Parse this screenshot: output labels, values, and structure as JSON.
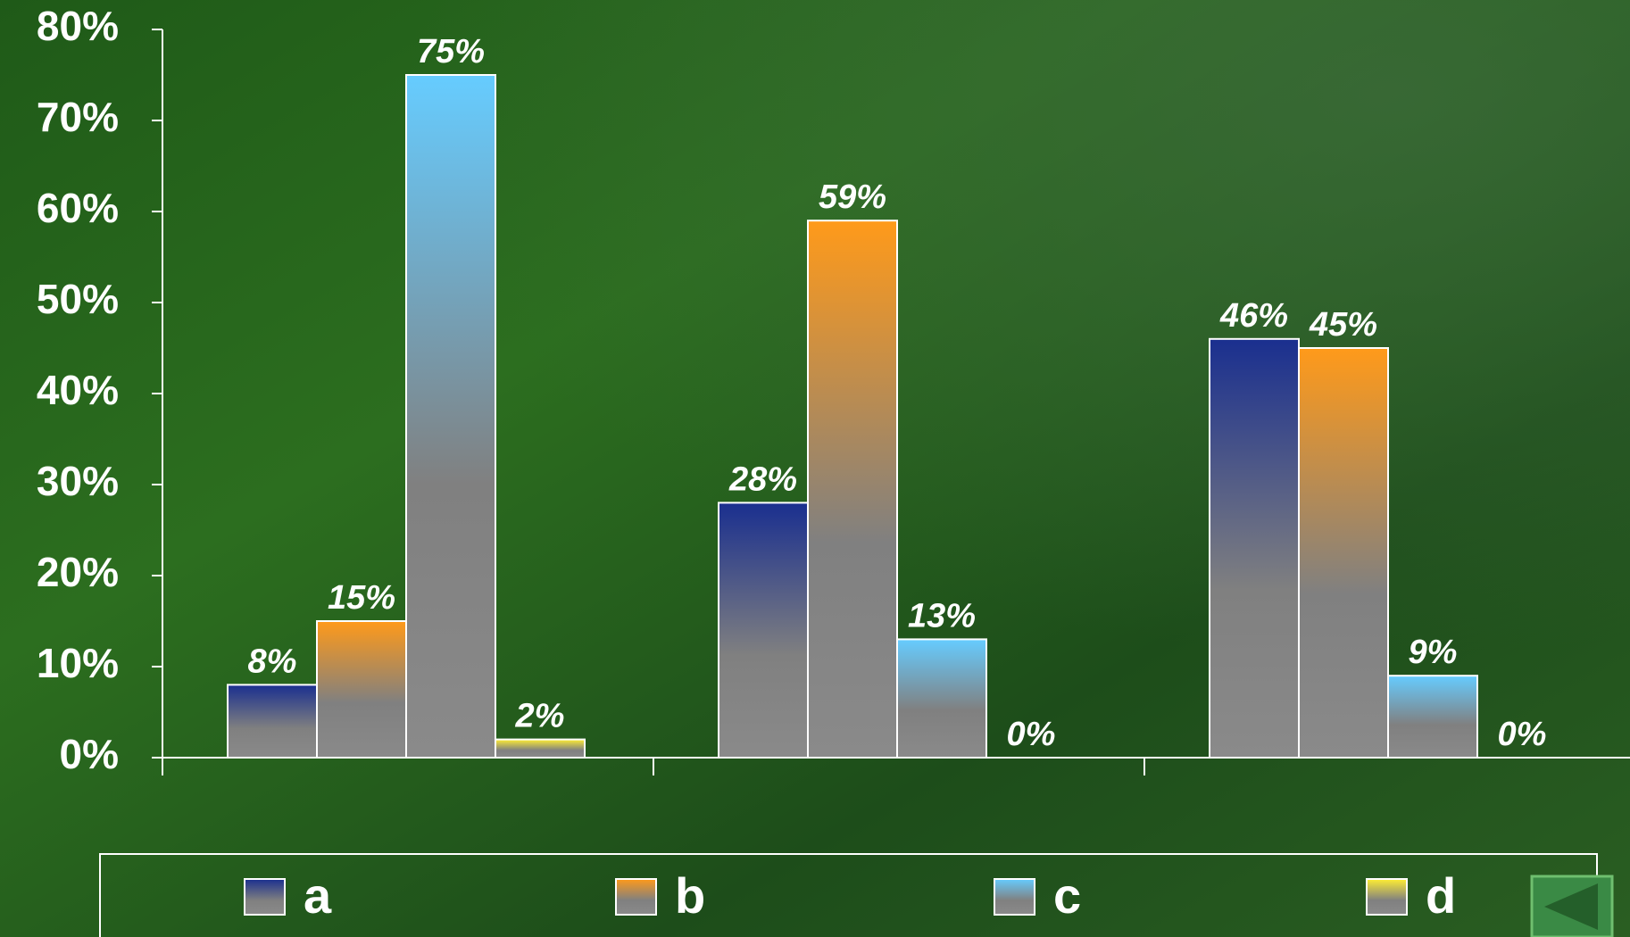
{
  "chart_data": {
    "type": "bar",
    "categories": [
      null,
      null,
      null
    ],
    "series": [
      {
        "name": "a",
        "color": "#1a2f8f",
        "values": [
          8,
          28,
          46
        ],
        "value_labels": [
          "8%",
          "28%",
          "46%"
        ]
      },
      {
        "name": "b",
        "color": "#ff9a1a",
        "values": [
          15,
          59,
          45
        ],
        "value_labels": [
          "15%",
          "59%",
          "45%"
        ]
      },
      {
        "name": "c",
        "color": "#66ccff",
        "values": [
          75,
          13,
          9
        ],
        "value_labels": [
          "75%",
          "13%",
          "9%"
        ]
      },
      {
        "name": "d",
        "color": "#ffee33",
        "values": [
          2,
          0,
          0
        ],
        "value_labels": [
          "2%",
          "0%",
          "0%"
        ]
      }
    ],
    "ylim": [
      0,
      80
    ],
    "yticks": [
      {
        "value": 0,
        "label": "0%"
      },
      {
        "value": 10,
        "label": "10%"
      },
      {
        "value": 20,
        "label": "20%"
      },
      {
        "value": 30,
        "label": "30%"
      },
      {
        "value": 40,
        "label": "40%"
      },
      {
        "value": 50,
        "label": "50%"
      },
      {
        "value": 60,
        "label": "60%"
      },
      {
        "value": 70,
        "label": "70%"
      },
      {
        "value": 80,
        "label": "80%"
      }
    ],
    "grid": false,
    "legend": "bottom"
  }
}
